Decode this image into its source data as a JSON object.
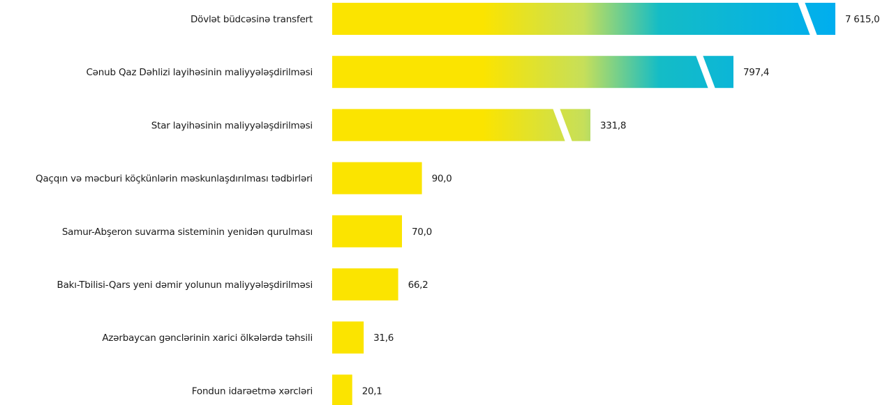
{
  "chart_data": {
    "type": "bar",
    "orientation": "horizontal",
    "axis_break": true,
    "categories": [
      "Dövlət büdcəsinə transfert",
      "Cənub Qaz Dəhlizi layihəsinin maliyyələşdirilməsi",
      "Star layihəsinin maliyyələşdirilməsi",
      "Qaçqın və məcburi köçkünlərin məskunlaşdırılması tədbirləri",
      "Samur-Abşeron suvarma sisteminin yenidən qurulması",
      "Bakı-Tbilisi-Qars yeni dəmir yolunun maliyyələşdirilməsi",
      "Azərbaycan gənclərinin xarici ölkələrdə təhsili",
      "Fondun idarəetmə xərcləri"
    ],
    "values": [
      7615.0,
      797.4,
      331.8,
      90.0,
      70.0,
      66.2,
      31.6,
      20.1
    ],
    "value_labels": [
      "7 615,0",
      "797,4",
      "331,8",
      "90,0",
      "70,0",
      "66,2",
      "31,6",
      "20,1"
    ],
    "legend": null,
    "gradient_colors": [
      "#fbe400",
      "#c6df5a",
      "#14bcc6",
      "#00aeef"
    ]
  }
}
